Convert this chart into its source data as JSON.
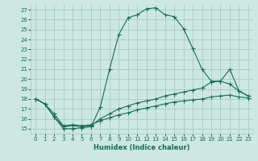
{
  "xlabel": "Humidex (Indice chaleur)",
  "bg_color": "#cce8e0",
  "grid_color": "#aaccc4",
  "line_color": "#1a6b5a",
  "xlim": [
    -0.5,
    23.5
  ],
  "ylim": [
    14.5,
    27.5
  ],
  "xticks": [
    0,
    1,
    2,
    3,
    4,
    5,
    6,
    7,
    8,
    9,
    10,
    11,
    12,
    13,
    14,
    15,
    16,
    17,
    18,
    19,
    20,
    21,
    22,
    23
  ],
  "yticks": [
    15,
    16,
    17,
    18,
    19,
    20,
    21,
    22,
    23,
    24,
    25,
    26,
    27
  ],
  "series1_x": [
    0,
    1,
    2,
    3,
    4,
    5,
    6,
    7,
    8,
    9,
    10,
    11,
    12,
    13,
    14,
    15,
    16,
    17,
    18,
    19,
    20,
    21,
    22,
    23
  ],
  "series1_y": [
    18.0,
    17.5,
    16.2,
    15.0,
    15.0,
    15.1,
    15.2,
    17.2,
    21.0,
    24.5,
    26.2,
    26.5,
    27.1,
    27.2,
    26.5,
    26.3,
    25.1,
    23.1,
    21.0,
    19.8,
    19.8,
    21.0,
    18.8,
    18.3
  ],
  "series2_x": [
    0,
    1,
    2,
    3,
    4,
    5,
    6,
    7,
    8,
    9,
    10,
    11,
    12,
    13,
    14,
    15,
    16,
    17,
    18,
    19,
    20,
    21,
    22,
    23
  ],
  "series2_y": [
    18.0,
    17.5,
    16.2,
    15.2,
    15.3,
    15.2,
    15.3,
    16.0,
    16.5,
    17.0,
    17.3,
    17.6,
    17.8,
    18.0,
    18.3,
    18.5,
    18.7,
    18.9,
    19.1,
    19.7,
    19.8,
    19.5,
    18.8,
    18.3
  ],
  "series3_x": [
    0,
    1,
    2,
    3,
    4,
    5,
    6,
    7,
    8,
    9,
    10,
    11,
    12,
    13,
    14,
    15,
    16,
    17,
    18,
    19,
    20,
    21,
    22,
    23
  ],
  "series3_y": [
    18.0,
    17.5,
    16.5,
    15.3,
    15.4,
    15.3,
    15.4,
    15.8,
    16.1,
    16.4,
    16.6,
    16.9,
    17.1,
    17.3,
    17.5,
    17.7,
    17.8,
    17.9,
    18.0,
    18.2,
    18.3,
    18.4,
    18.2,
    18.1
  ]
}
